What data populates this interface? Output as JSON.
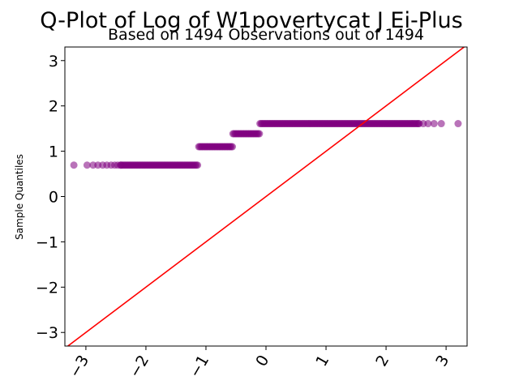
{
  "chart_data": {
    "type": "scatter",
    "title": "Q-Plot of Log of W1povertycat J Ei-Plus",
    "subtitle": "Based on 1494 Observations out of 1494",
    "xlabel": "",
    "ylabel": "Sample Quantiles",
    "xlim": [
      -3.35,
      3.35
    ],
    "ylim": [
      -3.3,
      3.3
    ],
    "x_ticks": [
      -3,
      -2,
      -1,
      0,
      1,
      2,
      3
    ],
    "x_tick_labels": [
      "−3",
      "−2",
      "−1",
      "0",
      "1",
      "2",
      "3"
    ],
    "y_ticks": [
      -3,
      -2,
      -1,
      0,
      1,
      2,
      3
    ],
    "y_tick_labels": [
      "−3",
      "−2",
      "−1",
      "0",
      "1",
      "2",
      "3"
    ],
    "x_tick_rotation_deg": 60,
    "grid": false,
    "reference_line": {
      "slope": 1,
      "intercept": 0,
      "color": "#ff0000"
    },
    "marker_color": "#800080",
    "marker_alpha": 0.55,
    "segments": [
      {
        "value": 0.693,
        "x_start": -3.2,
        "x_end": -1.12,
        "sparse_left": [
          -3.2,
          -2.98,
          -2.88,
          -2.8,
          -2.72,
          -2.65,
          -2.58,
          -2.52,
          -2.47,
          -2.42
        ]
      },
      {
        "value": 1.099,
        "x_start": -1.12,
        "x_end": -0.55,
        "sparse_left": []
      },
      {
        "value": 1.386,
        "x_start": -0.55,
        "x_end": -0.1,
        "sparse_left": []
      },
      {
        "value": 1.609,
        "x_start": -0.1,
        "x_end": 3.2,
        "sparse_right": [
          2.55,
          2.62,
          2.7,
          2.8,
          2.92,
          3.2
        ]
      }
    ]
  }
}
